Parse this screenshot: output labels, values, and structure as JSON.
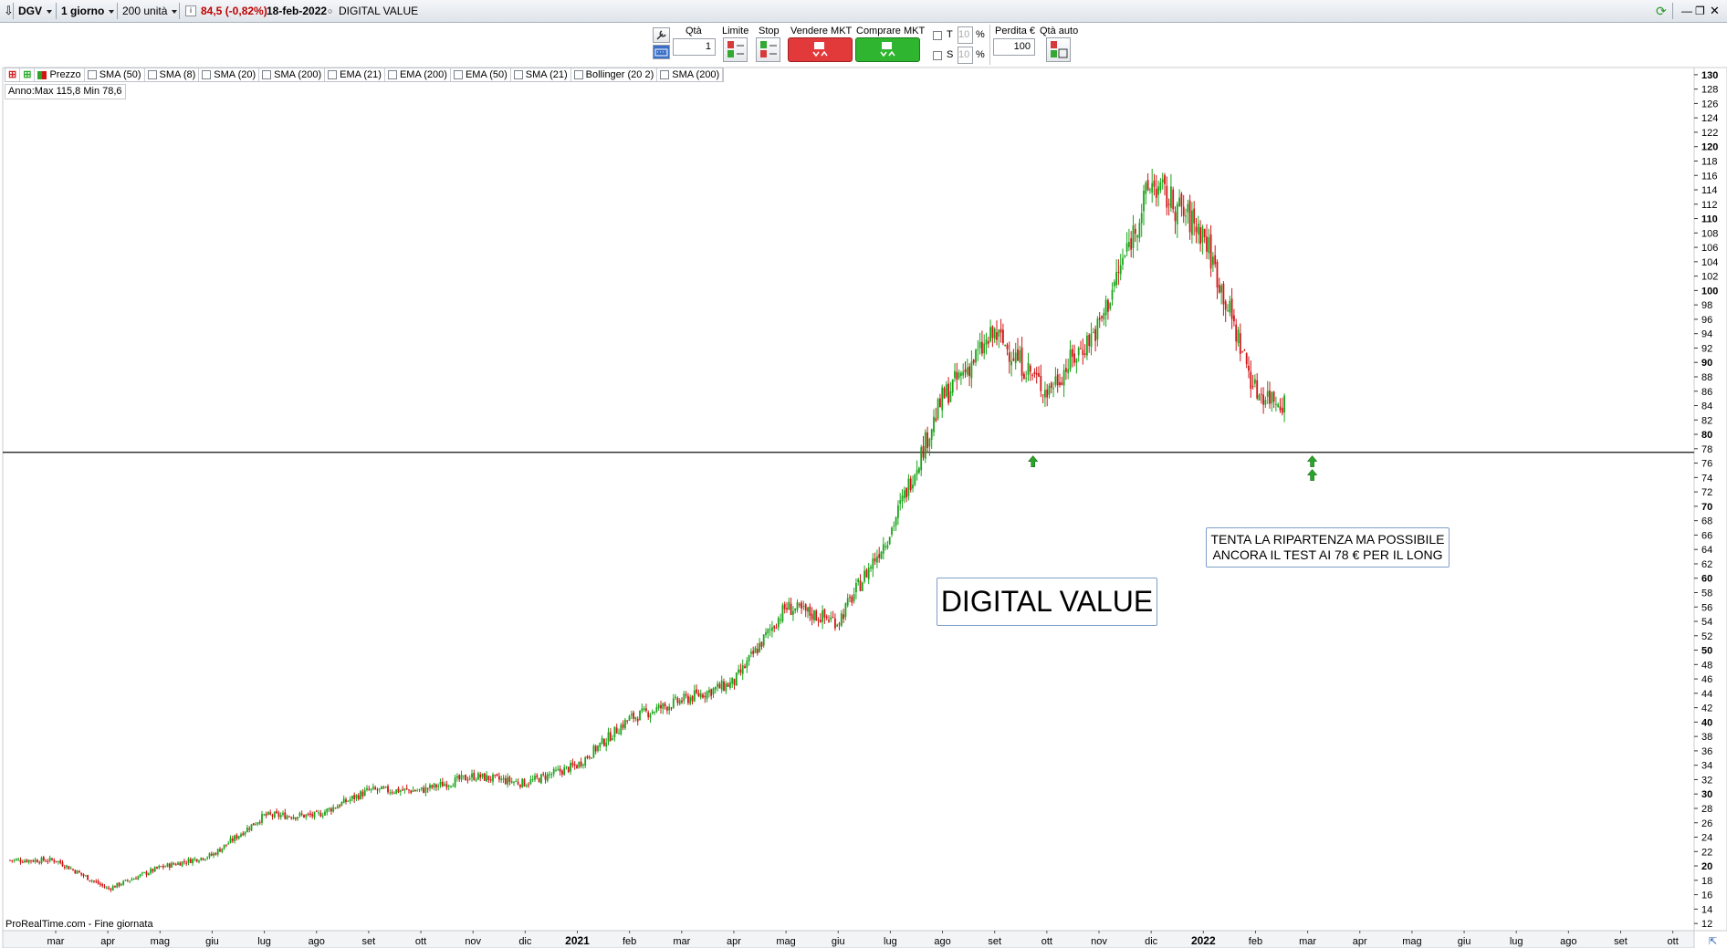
{
  "titlebar": {
    "symbol": "DGV",
    "period": "1 giorno",
    "units": "200 unità",
    "last_price": "84,5 (-0,82%)",
    "date": "18-feb-2022",
    "name": "DIGITAL VALUE",
    "colors": {
      "change": "#c00000"
    }
  },
  "order_panel": {
    "qty_label": "Qtà",
    "qty_value": "1",
    "limit_label": "Limite",
    "stop_label": "Stop",
    "sell_label": "Vendere MKT",
    "buy_label": "Comprare MKT",
    "t_label": "T",
    "s_label": "S",
    "t_value": "10",
    "s_value": "10",
    "percent": "%",
    "loss_label": "Perdita €",
    "loss_value": "100",
    "auto_qty_label": "Qtà auto",
    "colors": {
      "sell": "#e23a3a",
      "buy": "#2fb52f"
    }
  },
  "legend": {
    "items": [
      "Prezzo",
      "SMA (50)",
      "SMA (8)",
      "SMA (20)",
      "SMA (200)",
      "EMA (21)",
      "EMA (200)",
      "EMA (50)",
      "SMA (21)",
      "Bollinger (20 2)",
      "SMA (200)"
    ]
  },
  "annual_range": "Anno:Max 115,8 Min 78,6",
  "annotations": {
    "title_box": "DIGITAL VALUE",
    "note_line1": "TENTA LA RIPARTENZA MA POSSIBILE",
    "note_line2": "ANCORA IL TEST AI 78 € PER IL LONG"
  },
  "footer": "ProRealTime.com - Fine giornata",
  "chart_data": {
    "type": "candlestick",
    "x_ticks": [
      "mar",
      "apr",
      "mag",
      "giu",
      "lug",
      "ago",
      "set",
      "ott",
      "nov",
      "dic",
      "2021",
      "feb",
      "mar",
      "apr",
      "mag",
      "giu",
      "lug",
      "ago",
      "set",
      "ott",
      "nov",
      "dic",
      "2022",
      "feb",
      "mar",
      "apr",
      "mag",
      "giu",
      "lug",
      "ago",
      "set",
      "ott"
    ],
    "x_ticks_bold": [
      "2021",
      "2022"
    ],
    "y_range": [
      11,
      131
    ],
    "y_ticks": [
      12,
      14,
      16,
      18,
      20,
      22,
      24,
      26,
      28,
      30,
      32,
      34,
      36,
      38,
      40,
      42,
      44,
      46,
      48,
      50,
      52,
      54,
      56,
      58,
      60,
      62,
      64,
      66,
      68,
      70,
      72,
      74,
      76,
      78,
      80,
      82,
      84,
      86,
      88,
      90,
      92,
      94,
      96,
      98,
      100,
      102,
      104,
      106,
      108,
      110,
      112,
      114,
      116,
      118,
      120,
      122,
      124,
      126,
      128,
      130
    ],
    "y_ticks_bold": [
      20,
      30,
      40,
      50,
      60,
      70,
      80,
      90,
      100,
      110,
      120,
      130
    ],
    "horizontal_line": 77.5,
    "series_colors": {
      "up": "#1aa51a",
      "down": "#d01515"
    },
    "close_path": [
      [
        "mar",
        20.8
      ],
      [
        "apr",
        16.8
      ],
      [
        "mag",
        19.8
      ],
      [
        "giu",
        21.5
      ],
      [
        "lug",
        27
      ],
      [
        "ago",
        27
      ],
      [
        "set",
        30.5
      ],
      [
        "ott",
        30.5
      ],
      [
        "nov",
        32.5
      ],
      [
        "dic",
        31.5
      ],
      [
        "2021",
        34
      ],
      [
        "feb",
        40.5
      ],
      [
        "mar",
        43
      ],
      [
        "apr",
        45.5
      ],
      [
        "mag",
        56
      ],
      [
        "giu",
        54
      ],
      [
        "lug",
        66.5
      ],
      [
        "ago",
        85
      ],
      [
        "set",
        94
      ],
      [
        "ott",
        86
      ],
      [
        "nov",
        95
      ],
      [
        "dic",
        115
      ],
      [
        "2022",
        108
      ],
      [
        "feb",
        86
      ],
      [
        "feb",
        84.5
      ]
    ],
    "markers": [
      {
        "type": "up-arrow",
        "date": "fine set 2021",
        "y": 76.5
      },
      {
        "type": "double-up-arrow",
        "date": "inizio mar 2022",
        "y": 76
      }
    ]
  }
}
